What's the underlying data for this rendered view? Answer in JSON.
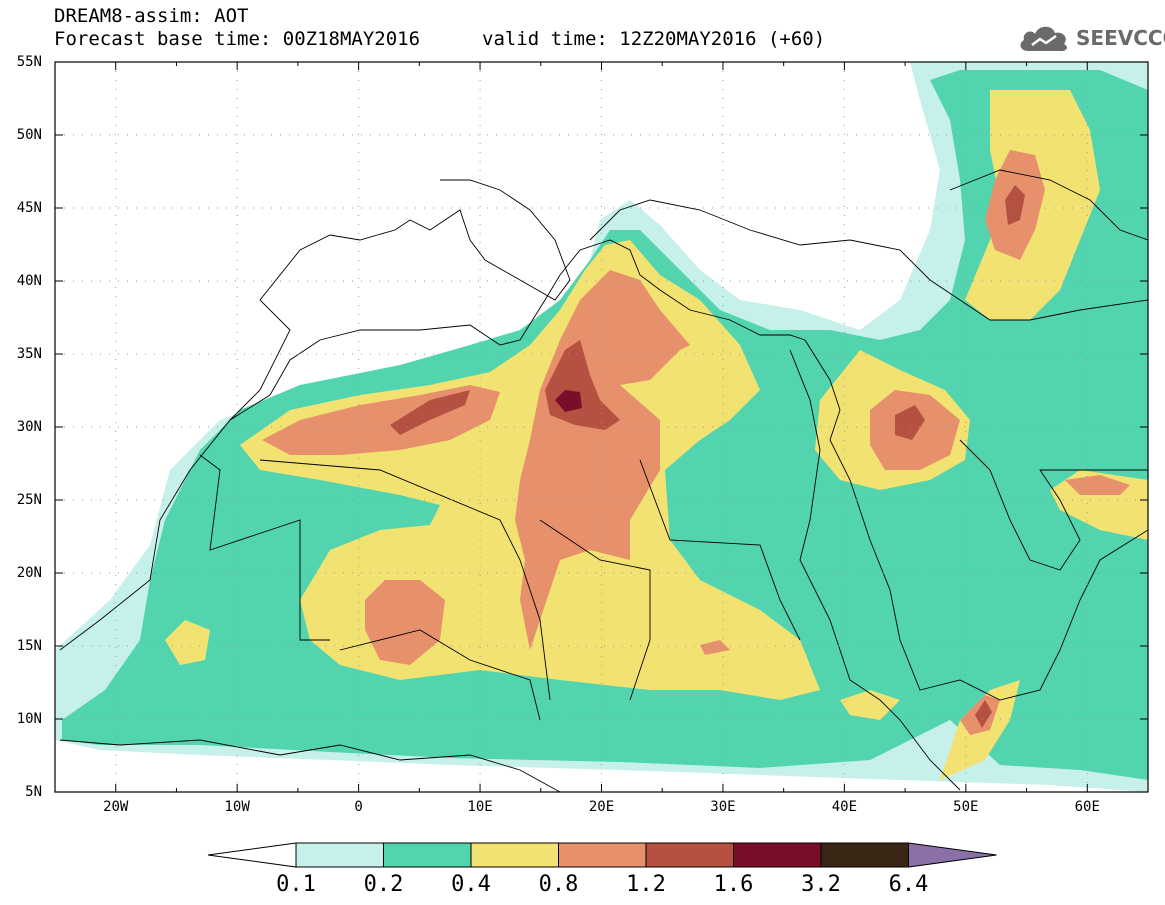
{
  "header": {
    "title": "DREAM8-assim: AOT",
    "base_time": "Forecast base time: 00Z18MAY2016",
    "valid_time": "valid time: 12Z20MAY2016 (+60)"
  },
  "logo": {
    "icon": "cloud-icon",
    "text": "SEEVCCC"
  },
  "map": {
    "lat_labels": [
      "55N",
      "50N",
      "45N",
      "40N",
      "35N",
      "30N",
      "25N",
      "20N",
      "15N",
      "10N",
      "5N"
    ],
    "lon_labels": [
      "20W",
      "10W",
      "0",
      "10E",
      "20E",
      "30E",
      "40E",
      "50E",
      "60E"
    ],
    "colors": {
      "c01": "#c6f0ea",
      "c02": "#52d5ae",
      "c04": "#f2e272",
      "c08": "#e7906c",
      "c12": "#b55140",
      "c16": "#7a0e2a",
      "c32": "#3a2614",
      "c64": "#8b6fa8"
    }
  },
  "colorbar": {
    "labels": [
      "0.1",
      "0.2",
      "0.4",
      "0.8",
      "1.2",
      "1.6",
      "3.2",
      "6.4"
    ],
    "colors": [
      "#ffffff",
      "#c6f0ea",
      "#52d5ae",
      "#f2e272",
      "#e7906c",
      "#b55140",
      "#7a0e2a",
      "#3a2614",
      "#8b6fa8"
    ]
  }
}
